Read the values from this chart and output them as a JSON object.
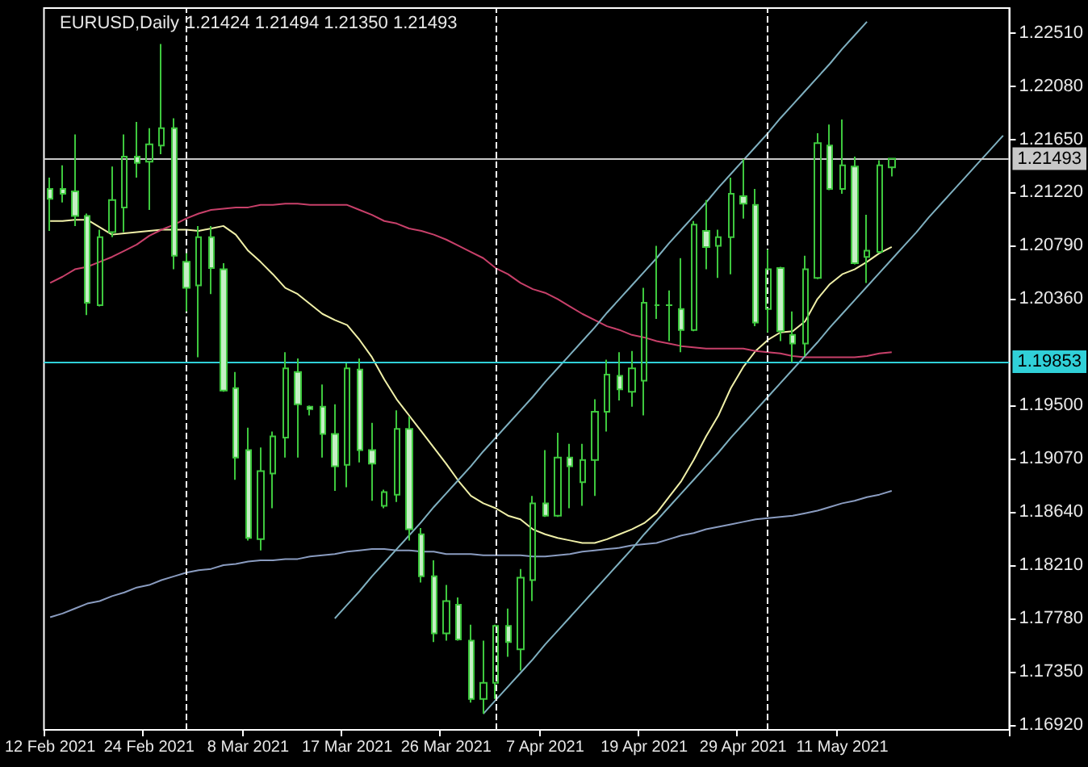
{
  "chart_data": {
    "type": "candlestick",
    "title": "EURUSD,Daily",
    "subtitle": "1.21424 1.21494 1.21350 1.21493",
    "categories": [
      "12 Feb 2021",
      null,
      null,
      null,
      null,
      null,
      null,
      null,
      "24 Feb 2021",
      null,
      null,
      null,
      null,
      null,
      null,
      null,
      "8 Mar 2021",
      null,
      null,
      null,
      null,
      null,
      null,
      null,
      "17 Mar 2021",
      null,
      null,
      null,
      null,
      null,
      null,
      null,
      "26 Mar 2021",
      null,
      null,
      null,
      null,
      null,
      null,
      null,
      "7 Apr 2021",
      null,
      null,
      null,
      null,
      null,
      null,
      null,
      "19 Apr 2021",
      null,
      null,
      null,
      null,
      null,
      null,
      null,
      "29 Apr 2021",
      null,
      null,
      null,
      null,
      null,
      null,
      null,
      "11 May 2021",
      null,
      null,
      null,
      null,
      null,
      null,
      null,
      null,
      null,
      null,
      null,
      null,
      null
    ],
    "color": "#3ec83e",
    "ohlc": [
      [
        1.2125,
        1.2134,
        1.2091,
        1.2117
      ],
      [
        1.2125,
        1.2144,
        1.2114,
        1.2121
      ],
      [
        1.2123,
        1.2169,
        1.2095,
        1.2103
      ],
      [
        1.2103,
        1.2105,
        1.2023,
        1.2033
      ],
      [
        1.2031,
        1.2092,
        1.203,
        1.2086
      ],
      [
        1.209,
        1.2143,
        1.2086,
        1.2116
      ],
      [
        1.211,
        1.2169,
        1.209,
        1.2151
      ],
      [
        1.2151,
        1.2179,
        1.2134,
        1.2146
      ],
      [
        1.2147,
        1.2174,
        1.2108,
        1.2161
      ],
      [
        1.216,
        1.2242,
        1.2153,
        1.2174
      ],
      [
        1.2174,
        1.2182,
        1.206,
        1.2071
      ],
      [
        1.2066,
        1.2073,
        1.2026,
        1.2045
      ],
      [
        1.2047,
        1.2095,
        1.1989,
        1.2086
      ],
      [
        1.2086,
        1.2095,
        1.204,
        1.2061
      ],
      [
        1.206,
        1.2065,
        1.1961,
        1.1962
      ],
      [
        1.1964,
        1.1977,
        1.189,
        1.1908
      ],
      [
        1.1914,
        1.1932,
        1.1841,
        1.1843
      ],
      [
        1.1842,
        1.1916,
        1.1833,
        1.1897
      ],
      [
        1.1895,
        1.1929,
        1.1867,
        1.1925
      ],
      [
        1.1924,
        1.1993,
        1.1908,
        1.198
      ],
      [
        1.1977,
        1.1988,
        1.1908,
        1.1951
      ],
      [
        1.1949,
        1.195,
        1.1942,
        1.1947
      ],
      [
        1.1949,
        1.1967,
        1.1908,
        1.1927
      ],
      [
        1.1927,
        1.1951,
        1.1881,
        1.1901
      ],
      [
        1.1902,
        1.1984,
        1.1884,
        1.198
      ],
      [
        1.1979,
        1.1988,
        1.1904,
        1.1914
      ],
      [
        1.1914,
        1.1936,
        1.1873,
        1.1903
      ],
      [
        1.1869,
        1.1882,
        1.1867,
        1.188
      ],
      [
        1.1878,
        1.1946,
        1.1872,
        1.1931
      ],
      [
        1.1931,
        1.1941,
        1.1841,
        1.185
      ],
      [
        1.1846,
        1.1851,
        1.1807,
        1.1812
      ],
      [
        1.1812,
        1.1825,
        1.1759,
        1.1766
      ],
      [
        1.1766,
        1.1805,
        1.176,
        1.1792
      ],
      [
        1.1789,
        1.1795,
        1.176,
        1.1761
      ],
      [
        1.176,
        1.1773,
        1.171,
        1.1713
      ],
      [
        1.1713,
        1.176,
        1.1701,
        1.1726
      ],
      [
        1.1726,
        1.1773,
        1.1713,
        1.1772
      ],
      [
        1.1772,
        1.1786,
        1.1747,
        1.1759
      ],
      [
        1.1753,
        1.1818,
        1.1736,
        1.1811
      ],
      [
        1.1809,
        1.1877,
        1.1792,
        1.1871
      ],
      [
        1.1871,
        1.1914,
        1.186,
        1.1861
      ],
      [
        1.1861,
        1.1928,
        1.186,
        1.1908
      ],
      [
        1.1908,
        1.1919,
        1.1867,
        1.1901
      ],
      [
        1.1888,
        1.1919,
        1.1869,
        1.1906
      ],
      [
        1.1906,
        1.1955,
        1.1877,
        1.1945
      ],
      [
        1.1945,
        1.1987,
        1.1929,
        1.1975
      ],
      [
        1.1974,
        1.1993,
        1.1954,
        1.1963
      ],
      [
        1.1961,
        1.1994,
        1.1949,
        1.198
      ],
      [
        1.197,
        1.2045,
        1.1942,
        1.2033
      ],
      [
        1.2031,
        1.2079,
        1.202,
        1.2031
      ],
      [
        1.2031,
        1.2043,
        1.2002,
        1.2031
      ],
      [
        1.2028,
        1.2069,
        1.1993,
        1.2011
      ],
      [
        1.2011,
        1.2099,
        1.201,
        1.2096
      ],
      [
        1.2091,
        1.2116,
        1.206,
        1.2078
      ],
      [
        1.2079,
        1.2092,
        1.2053,
        1.2086
      ],
      [
        1.2086,
        1.2134,
        1.2056,
        1.2121
      ],
      [
        1.2119,
        1.2149,
        1.2101,
        1.2113
      ],
      [
        1.2112,
        1.2125,
        1.2014,
        1.2017
      ],
      [
        1.2028,
        1.2076,
        1.2009,
        1.206
      ],
      [
        1.2061,
        1.2062,
        1.2002,
        1.201
      ],
      [
        1.2007,
        1.2026,
        1.1985,
        1.2
      ],
      [
        1.2,
        1.2071,
        1.199,
        1.206
      ],
      [
        1.2053,
        1.217,
        1.2052,
        1.2162
      ],
      [
        1.216,
        1.2177,
        1.2124,
        1.2125
      ],
      [
        1.2125,
        1.2181,
        1.2121,
        1.2144
      ],
      [
        1.2143,
        1.2151,
        1.2064,
        1.2065
      ],
      [
        1.207,
        1.2104,
        1.2049,
        1.2075
      ],
      [
        1.2074,
        1.2148,
        1.2073,
        1.2144
      ],
      [
        1.21424,
        1.21494,
        1.2135,
        1.21493
      ],
      null,
      null,
      null,
      null,
      null,
      null,
      null,
      null,
      null
    ],
    "series": [
      {
        "type": "line",
        "color": "#f0f0a8",
        "values": [
          1.2099,
          1.2099,
          1.21,
          1.21,
          1.2094,
          1.2088,
          1.2089,
          1.209,
          1.2091,
          1.2092,
          1.2092,
          1.2092,
          1.2091,
          1.2093,
          1.2095,
          1.2088,
          1.2075,
          1.2066,
          1.2056,
          1.2045,
          1.204,
          1.2032,
          1.2024,
          1.2019,
          1.2015,
          1.2003,
          1.1989,
          1.1971,
          1.1955,
          1.1942,
          1.1929,
          1.1916,
          1.1903,
          1.1889,
          1.1877,
          1.1871,
          1.1867,
          1.1861,
          1.1858,
          1.185,
          1.1846,
          1.1843,
          1.1841,
          1.1839,
          1.1839,
          1.1842,
          1.1846,
          1.185,
          1.1855,
          1.1863,
          1.1876,
          1.1889,
          1.1906,
          1.1925,
          1.1942,
          1.1964,
          1.1981,
          1.1994,
          1.2003,
          1.2009,
          1.201,
          1.2018,
          1.2036,
          1.2048,
          1.2056,
          1.206,
          1.2066,
          1.2073,
          1.2078,
          null,
          null,
          null,
          null,
          null,
          null,
          null,
          null,
          null
        ]
      },
      {
        "type": "line",
        "color": "#c8406a",
        "values": [
          1.2049,
          1.2054,
          1.206,
          1.2062,
          1.2066,
          1.207,
          1.2075,
          1.208,
          1.2087,
          1.2092,
          1.2096,
          1.2101,
          1.2105,
          1.2108,
          1.2109,
          1.211,
          1.211,
          1.2112,
          1.2112,
          1.2113,
          1.2113,
          1.2112,
          1.2112,
          1.2112,
          1.2112,
          1.2108,
          1.2104,
          1.2099,
          1.2097,
          1.2093,
          1.2091,
          1.2088,
          1.2084,
          1.2079,
          1.2074,
          1.2069,
          1.2061,
          1.2056,
          1.2049,
          1.2044,
          1.2041,
          1.2036,
          1.203,
          1.2024,
          1.2019,
          1.2014,
          1.2011,
          1.2007,
          1.2005,
          1.2002,
          1.2,
          1.1998,
          1.1997,
          1.1996,
          1.1996,
          1.1996,
          1.1996,
          1.1994,
          1.1993,
          1.1992,
          1.199,
          1.1989,
          1.1989,
          1.1989,
          1.1989,
          1.1989,
          1.199,
          1.1992,
          1.1993,
          null,
          null,
          null,
          null,
          null,
          null,
          null,
          null,
          null
        ]
      },
      {
        "type": "line",
        "color": "#8a9cc0",
        "values": [
          1.1779,
          1.1782,
          1.1786,
          1.179,
          1.1792,
          1.1796,
          1.1799,
          1.1803,
          1.1805,
          1.1809,
          1.1812,
          1.1815,
          1.1817,
          1.1818,
          1.1821,
          1.1822,
          1.1824,
          1.1825,
          1.1825,
          1.1826,
          1.1826,
          1.1828,
          1.1829,
          1.183,
          1.1832,
          1.1833,
          1.1834,
          1.1834,
          1.1833,
          1.1833,
          1.1832,
          1.1832,
          1.183,
          1.183,
          1.183,
          1.1829,
          1.1829,
          1.1829,
          1.1829,
          1.1828,
          1.1828,
          1.1829,
          1.183,
          1.1832,
          1.1833,
          1.1834,
          1.1835,
          1.1837,
          1.1838,
          1.1839,
          1.1842,
          1.1845,
          1.1847,
          1.185,
          1.1852,
          1.1854,
          1.1856,
          1.1858,
          1.1859,
          1.186,
          1.1861,
          1.1863,
          1.1865,
          1.1868,
          1.1871,
          1.1873,
          1.1876,
          1.1878,
          1.1881,
          null,
          null,
          null,
          null,
          null,
          null,
          null,
          null,
          null
        ]
      },
      {
        "type": "line",
        "color": "#7fb0c0",
        "values": [
          null,
          null,
          null,
          null,
          null,
          null,
          null,
          null,
          null,
          null,
          null,
          null,
          null,
          null,
          null,
          null,
          null,
          null,
          null,
          null,
          null,
          null,
          null,
          1.1778,
          1.1789,
          1.18,
          1.1812,
          1.1823,
          1.1834,
          1.1845,
          1.1856,
          1.1868,
          1.1879,
          1.189,
          1.1901,
          1.1913,
          1.1924,
          1.1935,
          1.1946,
          1.1957,
          1.1969,
          1.198,
          1.1991,
          1.2002,
          1.2013,
          1.2025,
          1.2036,
          1.2047,
          1.2058,
          1.2069,
          1.2081,
          1.2092,
          1.2103,
          1.2114,
          1.2126,
          1.2137,
          1.2148,
          1.2159,
          1.217,
          1.2182,
          1.2193,
          1.2204,
          1.2215,
          1.2226,
          1.2238,
          1.2249,
          1.226,
          null,
          null,
          null,
          null,
          null,
          null,
          null,
          null,
          null,
          null,
          null
        ]
      },
      {
        "type": "line",
        "color": "#7fb0c0",
        "values": [
          null,
          null,
          null,
          null,
          null,
          null,
          null,
          null,
          null,
          null,
          null,
          null,
          null,
          null,
          null,
          null,
          null,
          null,
          null,
          null,
          null,
          null,
          null,
          null,
          null,
          null,
          null,
          null,
          null,
          null,
          null,
          null,
          null,
          null,
          null,
          1.1701,
          1.1712,
          1.1723,
          1.1734,
          1.1745,
          1.1757,
          1.1768,
          1.1779,
          1.179,
          1.1801,
          1.1812,
          1.1823,
          1.1834,
          1.1846,
          1.1857,
          1.1868,
          1.1879,
          1.189,
          1.1901,
          1.1912,
          1.1924,
          1.1935,
          1.1946,
          1.1957,
          1.1968,
          1.1979,
          1.199,
          1.2001,
          1.2013,
          1.2024,
          1.2035,
          1.2046,
          1.2057,
          1.2068,
          1.2079,
          1.209,
          1.2102,
          1.2113,
          1.2124,
          1.2135,
          1.2146,
          1.2157,
          1.2168
        ]
      }
    ],
    "ylim": [
      1.1688,
      1.2271
    ],
    "yticks": [
      {
        "value": 1.1692,
        "label": "1.16920"
      },
      {
        "value": 1.1735,
        "label": "1.17350"
      },
      {
        "value": 1.1778,
        "label": "1.17780"
      },
      {
        "value": 1.1821,
        "label": "1.18210"
      },
      {
        "value": 1.1864,
        "label": "1.18640"
      },
      {
        "value": 1.1907,
        "label": "1.19070"
      },
      {
        "value": 1.195,
        "label": "1.19500"
      },
      {
        "value": 1.2036,
        "label": "1.20360"
      },
      {
        "value": 1.2079,
        "label": "1.20790"
      },
      {
        "value": 1.2122,
        "label": "1.21220"
      },
      {
        "value": 1.2165,
        "label": "1.21650"
      },
      {
        "value": 1.2208,
        "label": "1.22080"
      },
      {
        "value": 1.2251,
        "label": "1.22510"
      }
    ],
    "ref_lines": [
      {
        "axis": "y",
        "value": 1.21493,
        "label": "1.21493",
        "color": "#c8c8c8"
      },
      {
        "axis": "y",
        "value": 1.19853,
        "label": "1.19853",
        "color": "#30d0d8"
      }
    ],
    "marker": "none"
  }
}
